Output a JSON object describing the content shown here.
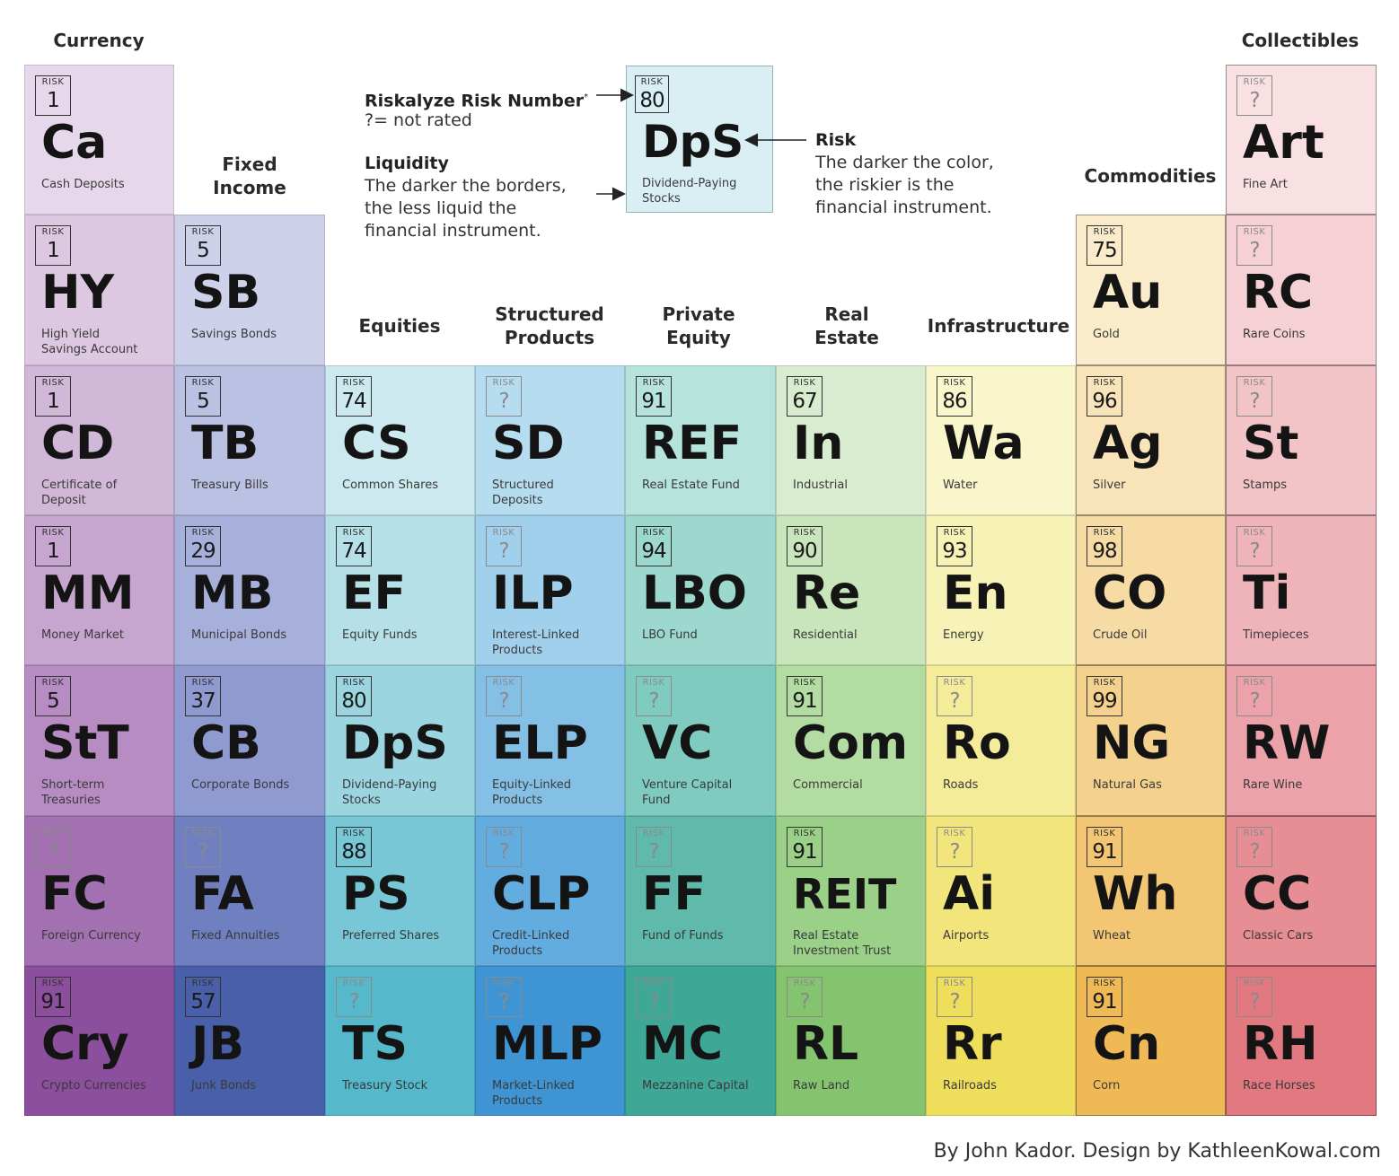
{
  "columns": [
    {
      "label": "Currency"
    },
    {
      "label": "Fixed\nIncome"
    },
    {
      "label": "Equities"
    },
    {
      "label": "Structured\nProducts"
    },
    {
      "label": "Private\nEquity"
    },
    {
      "label": "Real\nEstate"
    },
    {
      "label": "Infrastructure"
    },
    {
      "label": "Commodities"
    },
    {
      "label": "Collectibles"
    }
  ],
  "risk_label": "RISK",
  "tiles": [
    {
      "col": 0,
      "row": 0,
      "risk": "1",
      "symbol": "Ca",
      "name": "Cash Deposits",
      "color": "#e6d8ea"
    },
    {
      "col": 0,
      "row": 1,
      "risk": "1",
      "symbol": "HY",
      "name": "High Yield\nSavings Account",
      "color": "#dcc8e1"
    },
    {
      "col": 0,
      "row": 2,
      "risk": "1",
      "symbol": "CD",
      "name": "Certificate of\nDeposit",
      "color": "#d2b8d8"
    },
    {
      "col": 0,
      "row": 3,
      "risk": "1",
      "symbol": "MM",
      "name": "Money Market",
      "color": "#c6a5cf"
    },
    {
      "col": 0,
      "row": 4,
      "risk": "5",
      "symbol": "StT",
      "name": "Short-term\nTreasuries",
      "color": "#b68cc2"
    },
    {
      "col": 0,
      "row": 5,
      "risk": "?",
      "symbol": "FC",
      "name": "Foreign Currency",
      "color": "#a370b2"
    },
    {
      "col": 0,
      "row": 6,
      "risk": "91",
      "symbol": "Cry",
      "name": "Crypto Currencies",
      "color": "#8c4f9d"
    },
    {
      "col": 1,
      "row": 1,
      "risk": "5",
      "symbol": "SB",
      "name": "Savings Bonds",
      "color": "#cdd2ea"
    },
    {
      "col": 1,
      "row": 2,
      "risk": "5",
      "symbol": "TB",
      "name": "Treasury Bills",
      "color": "#bac1e3"
    },
    {
      "col": 1,
      "row": 3,
      "risk": "29",
      "symbol": "MB",
      "name": "Municipal Bonds",
      "color": "#a7b0db"
    },
    {
      "col": 1,
      "row": 4,
      "risk": "37",
      "symbol": "CB",
      "name": "Corporate Bonds",
      "color": "#8f9bd0"
    },
    {
      "col": 1,
      "row": 5,
      "risk": "?",
      "symbol": "FA",
      "name": "Fixed Annuities",
      "color": "#6f7fc0"
    },
    {
      "col": 1,
      "row": 6,
      "risk": "57",
      "symbol": "JB",
      "name": "Junk Bonds",
      "color": "#4a5faa"
    },
    {
      "col": 2,
      "row": 2,
      "risk": "74",
      "symbol": "CS",
      "name": "Common Shares",
      "color": "#cbe9ef"
    },
    {
      "col": 2,
      "row": 3,
      "risk": "74",
      "symbol": "EF",
      "name": "Equity Funds",
      "color": "#b5e0e8"
    },
    {
      "col": 2,
      "row": 4,
      "risk": "80",
      "symbol": "DpS",
      "name": "Dividend-Paying\nStocks",
      "color": "#9ad5e0"
    },
    {
      "col": 2,
      "row": 5,
      "risk": "88",
      "symbol": "PS",
      "name": "Preferred Shares",
      "color": "#77c7d6"
    },
    {
      "col": 2,
      "row": 6,
      "risk": "?",
      "symbol": "TS",
      "name": "Treasury Stock",
      "color": "#55b8cb"
    },
    {
      "col": 3,
      "row": 2,
      "risk": "?",
      "symbol": "SD",
      "name": "Structured\nDeposits",
      "color": "#b6dcf0"
    },
    {
      "col": 3,
      "row": 3,
      "risk": "?",
      "symbol": "ILP",
      "name": "Interest-Linked\nProducts",
      "color": "#a0d0ec"
    },
    {
      "col": 3,
      "row": 4,
      "risk": "?",
      "symbol": "ELP",
      "name": "Equity-Linked\nProducts",
      "color": "#84c0e6"
    },
    {
      "col": 3,
      "row": 5,
      "risk": "?",
      "symbol": "CLP",
      "name": "Credit-Linked\nProducts",
      "color": "#62ace0"
    },
    {
      "col": 3,
      "row": 6,
      "risk": "?",
      "symbol": "MLP",
      "name": "Market-Linked\nProducts",
      "color": "#3f95d4"
    },
    {
      "col": 4,
      "row": 2,
      "risk": "91",
      "symbol": "REF",
      "name": "Real Estate Fund",
      "color": "#b6e3dc"
    },
    {
      "col": 4,
      "row": 3,
      "risk": "94",
      "symbol": "LBO",
      "name": "LBO Fund",
      "color": "#9dd8cf"
    },
    {
      "col": 4,
      "row": 4,
      "risk": "?",
      "symbol": "VC",
      "name": "Venture Capital\nFund",
      "color": "#80cbbf"
    },
    {
      "col": 4,
      "row": 5,
      "risk": "?",
      "symbol": "FF",
      "name": "Fund of Funds",
      "color": "#5fbaab"
    },
    {
      "col": 4,
      "row": 6,
      "risk": "?",
      "symbol": "MC",
      "name": "Mezzanine Capital",
      "color": "#3ea795"
    },
    {
      "col": 5,
      "row": 2,
      "risk": "67",
      "symbol": "In",
      "name": "Industrial",
      "color": "#d8ecd0"
    },
    {
      "col": 5,
      "row": 3,
      "risk": "90",
      "symbol": "Re",
      "name": "Residential",
      "color": "#c8e5bb"
    },
    {
      "col": 5,
      "row": 4,
      "risk": "91",
      "symbol": "Com",
      "name": "Commercial",
      "color": "#b3dca2"
    },
    {
      "col": 5,
      "row": 5,
      "risk": "91",
      "symbol": "REIT",
      "name": "Real Estate\nInvestment Trust",
      "color": "#9bd088"
    },
    {
      "col": 5,
      "row": 6,
      "risk": "?",
      "symbol": "RL",
      "name": "Raw Land",
      "color": "#84c46e"
    },
    {
      "col": 6,
      "row": 2,
      "risk": "86",
      "symbol": "Wa",
      "name": "Water",
      "color": "#f9f6cc"
    },
    {
      "col": 6,
      "row": 3,
      "risk": "93",
      "symbol": "En",
      "name": "Energy",
      "color": "#f7f2b5"
    },
    {
      "col": 6,
      "row": 4,
      "risk": "?",
      "symbol": "Ro",
      "name": "Roads",
      "color": "#f5ec9a"
    },
    {
      "col": 6,
      "row": 5,
      "risk": "?",
      "symbol": "Ai",
      "name": "Airports",
      "color": "#f2e57c"
    },
    {
      "col": 6,
      "row": 6,
      "risk": "?",
      "symbol": "Rr",
      "name": "Railroads",
      "color": "#efdd5c"
    },
    {
      "col": 7,
      "row": 1,
      "risk": "75",
      "symbol": "Au",
      "name": "Gold",
      "color": "#faeccb"
    },
    {
      "col": 7,
      "row": 2,
      "risk": "96",
      "symbol": "Ag",
      "name": "Silver",
      "color": "#f8e4b8"
    },
    {
      "col": 7,
      "row": 3,
      "risk": "98",
      "symbol": "CO",
      "name": "Crude Oil",
      "color": "#f6dca4"
    },
    {
      "col": 7,
      "row": 4,
      "risk": "99",
      "symbol": "NG",
      "name": "Natural Gas",
      "color": "#f4d18c"
    },
    {
      "col": 7,
      "row": 5,
      "risk": "91",
      "symbol": "Wh",
      "name": "Wheat",
      "color": "#f2c672"
    },
    {
      "col": 7,
      "row": 6,
      "risk": "91",
      "symbol": "Cn",
      "name": "Corn",
      "color": "#efb956"
    },
    {
      "col": 8,
      "row": 0,
      "risk": "?",
      "symbol": "Art",
      "name": "Fine Art",
      "color": "#f9e0e2"
    },
    {
      "col": 8,
      "row": 1,
      "risk": "?",
      "symbol": "RC",
      "name": "Rare Coins",
      "color": "#f5d0d4"
    },
    {
      "col": 8,
      "row": 2,
      "risk": "?",
      "symbol": "St",
      "name": "Stamps",
      "color": "#f2c3c7"
    },
    {
      "col": 8,
      "row": 3,
      "risk": "?",
      "symbol": "Ti",
      "name": "Timepieces",
      "color": "#efb4b9"
    },
    {
      "col": 8,
      "row": 4,
      "risk": "?",
      "symbol": "RW",
      "name": "Rare Wine",
      "color": "#eba2a8"
    },
    {
      "col": 8,
      "row": 5,
      "risk": "?",
      "symbol": "CC",
      "name": "Classic Cars",
      "color": "#e78d94"
    },
    {
      "col": 8,
      "row": 6,
      "risk": "?",
      "symbol": "RH",
      "name": "Race Horses",
      "color": "#e27880"
    }
  ],
  "legend": {
    "risk_number_title": "Riskalyze Risk Number",
    "risk_number_mark": "*",
    "risk_number_note": "?= not rated",
    "liquidity_title": "Liquidity",
    "liquidity_text": "The darker the borders,\nthe less liquid the\nfinancial instrument.",
    "risk_title": "Risk",
    "risk_text": "The darker the color,\nthe riskier is the\nfinancial instrument.",
    "sample": {
      "risk": "80",
      "symbol": "DpS",
      "name": "Dividend-Paying\nStocks",
      "color": "#d9eff4"
    }
  },
  "credit": "By John Kador. Design by KathleenKowal.com"
}
